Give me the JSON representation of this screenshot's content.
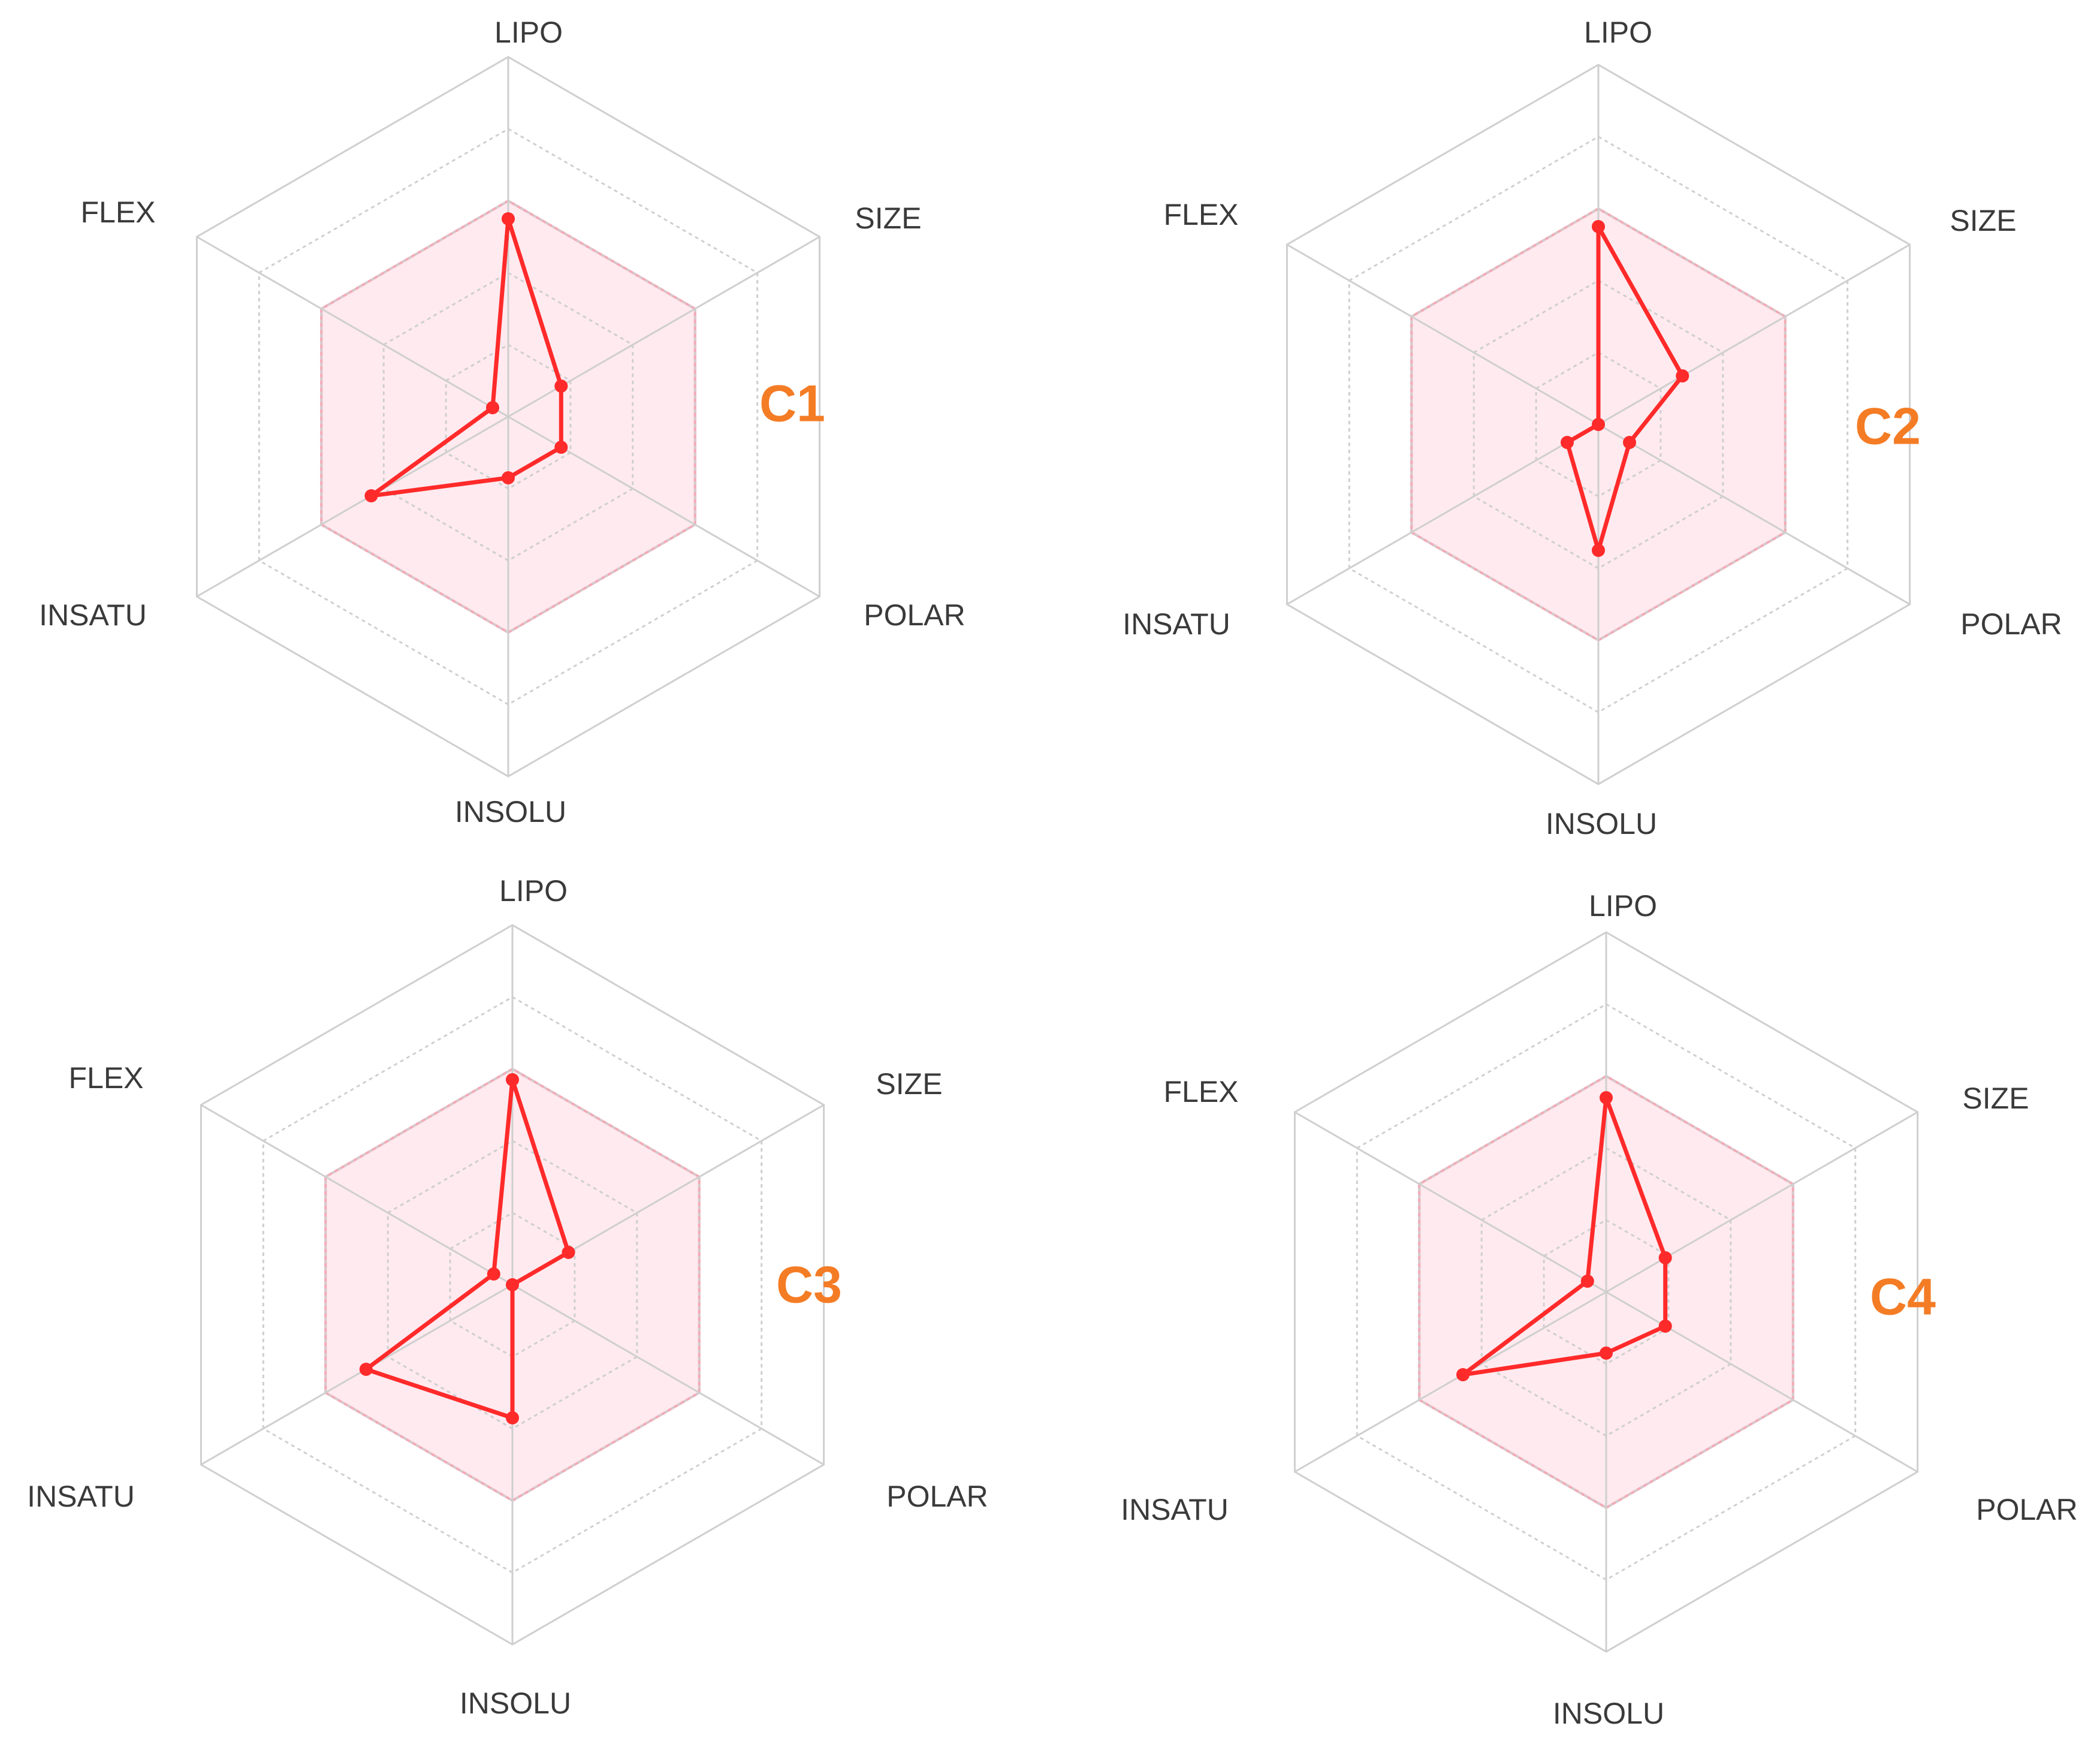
{
  "colors": {
    "series": "#ff2a2a",
    "optimal_fill": "#fde3ea",
    "optimal_stroke": "#f4a9b6",
    "grid": "#cfcfcf",
    "axis_text": "#3a3a3a",
    "compound_label": "#f47c25"
  },
  "chart_data": [
    {
      "type": "radar",
      "name": "C1",
      "axes": [
        "LIPO",
        "SIZE",
        "POLAR",
        "INSOLU",
        "INSATU",
        "FLEX"
      ],
      "optimal_range": [
        0.6,
        0.6,
        0.6,
        0.6,
        0.6,
        0.6
      ],
      "values": [
        0.55,
        0.17,
        0.17,
        0.17,
        0.44,
        0.05
      ],
      "ylim": [
        0,
        1
      ],
      "grid": true
    },
    {
      "type": "radar",
      "name": "C2",
      "axes": [
        "LIPO",
        "SIZE",
        "POLAR",
        "INSOLU",
        "INSATU",
        "FLEX"
      ],
      "optimal_range": [
        0.6,
        0.6,
        0.6,
        0.6,
        0.6,
        0.6
      ],
      "values": [
        0.55,
        0.27,
        0.1,
        0.35,
        0.1,
        0.0
      ],
      "ylim": [
        0,
        1
      ],
      "grid": true
    },
    {
      "type": "radar",
      "name": "C3",
      "axes": [
        "LIPO",
        "SIZE",
        "POLAR",
        "INSOLU",
        "INSATU",
        "FLEX"
      ],
      "optimal_range": [
        0.6,
        0.6,
        0.6,
        0.6,
        0.6,
        0.6
      ],
      "values": [
        0.57,
        0.18,
        0.0,
        0.37,
        0.47,
        0.06
      ],
      "ylim": [
        0,
        1
      ],
      "grid": true
    },
    {
      "type": "radar",
      "name": "C4",
      "axes": [
        "LIPO",
        "SIZE",
        "POLAR",
        "INSOLU",
        "INSATU",
        "FLEX"
      ],
      "optimal_range": [
        0.6,
        0.6,
        0.6,
        0.6,
        0.6,
        0.6
      ],
      "values": [
        0.54,
        0.19,
        0.19,
        0.17,
        0.46,
        0.06
      ],
      "ylim": [
        0,
        1
      ],
      "grid": true
    }
  ]
}
